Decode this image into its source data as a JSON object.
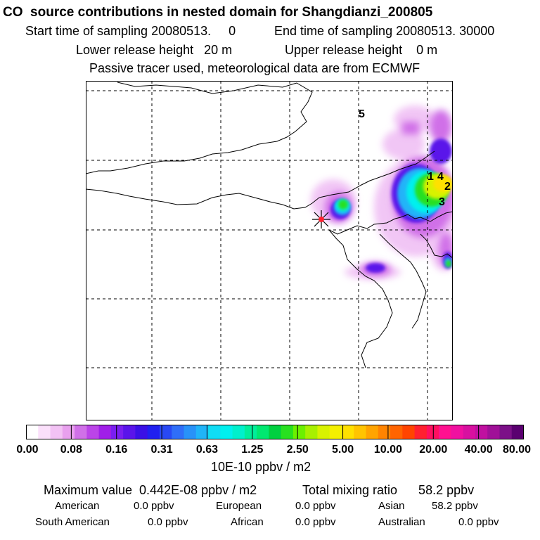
{
  "header": {
    "title": "CO  source contributions in nested domain for Shangdianzi_200805",
    "start_time": "Start time of sampling 20080513.     0",
    "end_time": "End time of sampling 20080513. 30000",
    "lower_release": "Lower release height   20 m",
    "upper_release": "Upper release height    0 m",
    "tracer_note": "Passive tracer used, meteorological data are from ECMWF"
  },
  "map": {
    "receptor_marker": "receptor-star",
    "labels": [
      "5",
      "1",
      "4",
      "2",
      "3"
    ]
  },
  "colorbar": {
    "ticks": [
      "0.00",
      "0.08",
      "0.16",
      "0.31",
      "0.63",
      "1.25",
      "2.50",
      "5.00",
      "10.00",
      "20.00",
      "40.00",
      "80.00"
    ],
    "colors": [
      "#ffffff",
      "#fbe0fb",
      "#f2c2f4",
      "#e8a0ee",
      "#d070e8",
      "#bb44e8",
      "#a01ee8",
      "#7a1ef0",
      "#5a14ea",
      "#3a10e6",
      "#2020f0",
      "#2848f5",
      "#2f6ef8",
      "#2892f8",
      "#20b4f8",
      "#10dcf4",
      "#00f0ee",
      "#00f0cc",
      "#00ee9a",
      "#00e870",
      "#00d040",
      "#28e020",
      "#6cf000",
      "#a8f000",
      "#d8f200",
      "#f4f000",
      "#ffe000",
      "#ffc400",
      "#ffa400",
      "#ff8400",
      "#ff6400",
      "#ff4400",
      "#ff2030",
      "#ff1060",
      "#ff1090",
      "#f010a0",
      "#d810a0",
      "#c010a0",
      "#a01098",
      "#7c1088",
      "#5a0070"
    ],
    "units": "10E-10 ppbv / m2"
  },
  "stats": {
    "max_value": "Maximum value  0.442E-08 ppbv / m2",
    "total_mixing": "Total mixing ratio      58.2 ppbv",
    "regions": [
      {
        "name": "American",
        "value": "0.0 ppbv"
      },
      {
        "name": "European",
        "value": "0.0 ppbv"
      },
      {
        "name": "Asian",
        "value": "58.2 ppbv"
      },
      {
        "name": "South American",
        "value": "0.0 ppbv"
      },
      {
        "name": "African",
        "value": "0.0 ppbv"
      },
      {
        "name": "Australian",
        "value": "0.0 ppbv"
      }
    ]
  }
}
